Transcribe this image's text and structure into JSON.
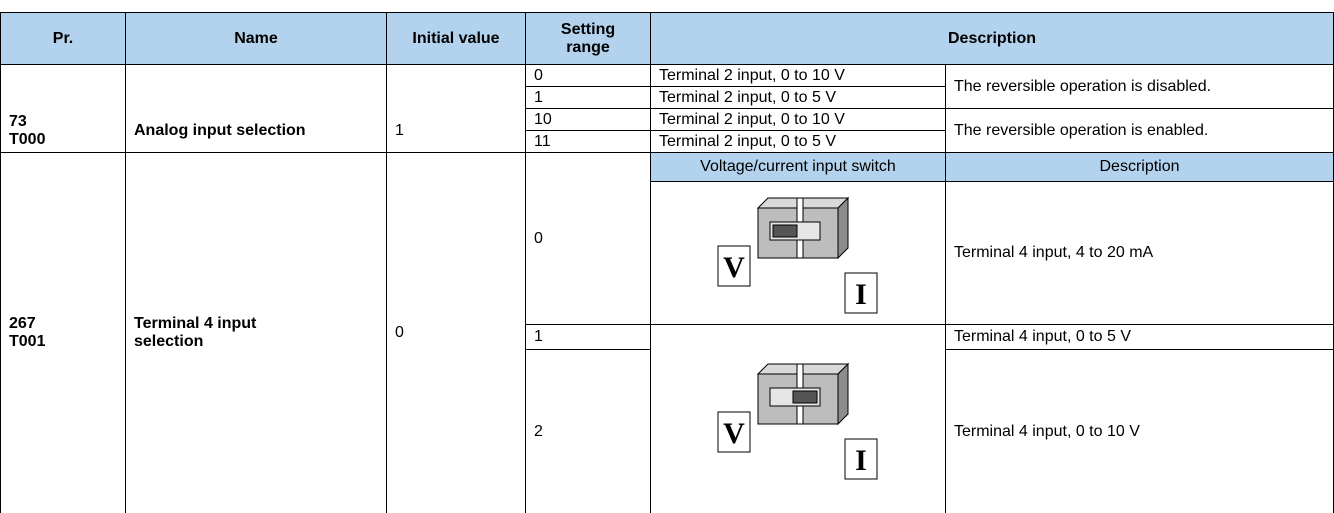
{
  "table": {
    "header": [
      "Pr.",
      "Name",
      "Initial value",
      "Setting range",
      "Description"
    ],
    "rows": [
      {
        "pr": [
          "73",
          "T000"
        ],
        "name": "Analog input selection",
        "initial": "1",
        "settings": [
          {
            "value": "0",
            "input": "Terminal 2 input, 0 to 10 V"
          },
          {
            "value": "1",
            "input": "Terminal 2 input, 0 to 5 V"
          },
          {
            "value": "10",
            "input": "Terminal 2 input, 0 to 10 V"
          },
          {
            "value": "11",
            "input": "Terminal 2 input, 0 to 5 V"
          }
        ],
        "notes": [
          "The reversible operation is disabled.",
          "The reversible operation is enabled."
        ]
      },
      {
        "pr": [
          "267",
          "T001"
        ],
        "name": "Terminal 4 input selection",
        "initial": "0",
        "subheader": [
          "Voltage/current input switch",
          "Description"
        ],
        "switch_labels": [
          "V",
          "I"
        ],
        "settings": [
          {
            "value": "0",
            "input": "Terminal 4 input, 4 to 20 mA"
          },
          {
            "value": "1",
            "input": "Terminal 4 input, 0 to 5 V"
          },
          {
            "value": "2",
            "input": "Terminal 4 input, 0 to 10 V"
          }
        ]
      }
    ]
  }
}
